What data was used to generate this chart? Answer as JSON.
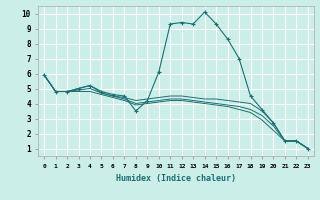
{
  "xlabel": "Humidex (Indice chaleur)",
  "background_color": "#cceee8",
  "grid_color": "#ffffff",
  "line_color": "#1a7070",
  "x_ticks": [
    0,
    1,
    2,
    3,
    4,
    5,
    6,
    7,
    8,
    9,
    10,
    11,
    12,
    13,
    14,
    15,
    16,
    17,
    18,
    19,
    20,
    21,
    22,
    23
  ],
  "y_ticks": [
    1,
    2,
    3,
    4,
    5,
    6,
    7,
    8,
    9,
    10
  ],
  "ylim": [
    0.5,
    10.5
  ],
  "xlim": [
    -0.5,
    23.5
  ],
  "main_line": {
    "x": [
      0,
      1,
      2,
      3,
      4,
      5,
      6,
      7,
      8,
      9,
      10,
      11,
      12,
      13,
      14,
      15,
      16,
      17,
      18,
      19,
      20,
      21,
      22,
      23
    ],
    "y": [
      5.9,
      4.8,
      4.8,
      5.0,
      5.2,
      4.8,
      4.6,
      4.5,
      3.5,
      4.2,
      6.1,
      9.3,
      9.4,
      9.3,
      10.1,
      9.3,
      8.3,
      7.0,
      4.5,
      3.6,
      2.7,
      1.5,
      1.5,
      1.0
    ]
  },
  "extra_lines": [
    {
      "x": [
        0,
        1,
        2,
        3,
        4,
        5,
        6,
        7,
        8,
        9,
        10,
        11,
        12,
        13,
        14,
        15,
        16,
        17,
        18,
        19,
        20,
        21,
        22,
        23
      ],
      "y": [
        5.9,
        4.8,
        4.8,
        5.0,
        5.2,
        4.7,
        4.5,
        4.4,
        4.2,
        4.3,
        4.4,
        4.5,
        4.5,
        4.4,
        4.3,
        4.3,
        4.2,
        4.1,
        4.0,
        3.5,
        2.7,
        1.5,
        1.5,
        1.0
      ]
    },
    {
      "x": [
        0,
        1,
        2,
        3,
        4,
        5,
        6,
        7,
        8,
        9,
        10,
        11,
        12,
        13,
        14,
        15,
        16,
        17,
        18,
        19,
        20,
        21,
        22,
        23
      ],
      "y": [
        5.9,
        4.8,
        4.8,
        4.9,
        5.0,
        4.7,
        4.5,
        4.3,
        4.0,
        4.1,
        4.2,
        4.3,
        4.3,
        4.2,
        4.1,
        4.0,
        3.9,
        3.8,
        3.6,
        3.2,
        2.5,
        1.5,
        1.5,
        1.0
      ]
    },
    {
      "x": [
        0,
        1,
        2,
        3,
        4,
        5,
        6,
        7,
        8,
        9,
        10,
        11,
        12,
        13,
        14,
        15,
        16,
        17,
        18,
        19,
        20,
        21,
        22,
        23
      ],
      "y": [
        5.9,
        4.8,
        4.8,
        4.8,
        4.8,
        4.6,
        4.4,
        4.2,
        3.9,
        4.0,
        4.1,
        4.2,
        4.2,
        4.1,
        4.0,
        3.9,
        3.8,
        3.6,
        3.4,
        2.9,
        2.2,
        1.5,
        1.5,
        1.0
      ]
    }
  ]
}
